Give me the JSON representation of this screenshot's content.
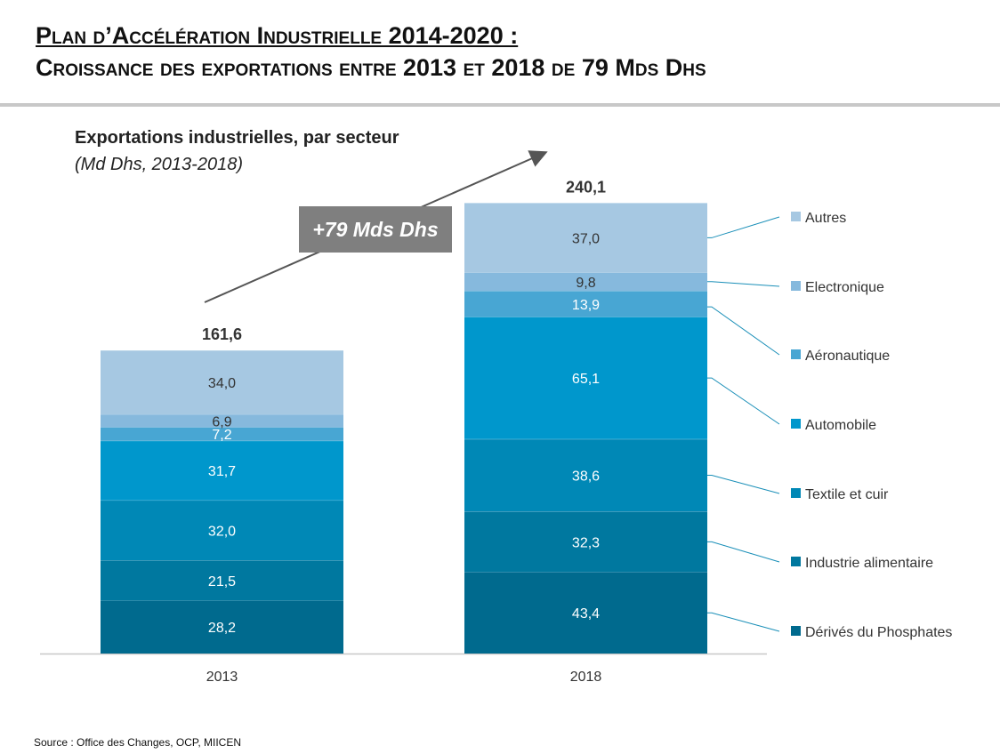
{
  "header": {
    "title_line1": "Plan d’Accélération Industrielle 2014-2020 :",
    "title_line2": "Croissance des exportations entre 2013 et 2018 de 79 Mds Dhs"
  },
  "chart_header": {
    "title": "Exportations industrielles, par secteur",
    "unit": "(Md Dhs, 2013-2018)"
  },
  "growth_label": "+79 Mds Dhs",
  "source": "Source : Office des Changes, OCP, MIICEN",
  "chart_data": {
    "type": "bar",
    "stacked": true,
    "categories": [
      "2013",
      "2018"
    ],
    "totals": [
      "161,6",
      "240,1"
    ],
    "series": [
      {
        "name": "Dérivés du Phosphates",
        "values": [
          28.2,
          43.4
        ],
        "labels": [
          "28,2",
          "43,4"
        ],
        "color": "#006a8e"
      },
      {
        "name": "Industrie alimentaire",
        "values": [
          21.5,
          32.3
        ],
        "labels": [
          "21,5",
          "32,3"
        ],
        "color": "#00789f"
      },
      {
        "name": "Textile et cuir",
        "values": [
          32.0,
          38.6
        ],
        "labels": [
          "32,0",
          "38,6"
        ],
        "color": "#0088b6"
      },
      {
        "name": "Automobile",
        "values": [
          31.7,
          65.1
        ],
        "labels": [
          "31,7",
          "65,1"
        ],
        "color": "#0097cc"
      },
      {
        "name": "Aéronautique",
        "values": [
          7.2,
          13.9
        ],
        "labels": [
          "7,2",
          "13,9"
        ],
        "color": "#48a6d3"
      },
      {
        "name": "Electronique",
        "values": [
          6.9,
          9.8
        ],
        "labels": [
          "6,9",
          "9,8"
        ],
        "color": "#86b9dd"
      },
      {
        "name": "Autres",
        "values": [
          34.0,
          37.0
        ],
        "labels": [
          "34,0",
          "37,0"
        ],
        "color": "#a6c8e2"
      }
    ],
    "legend_position": "right",
    "grid": false
  }
}
